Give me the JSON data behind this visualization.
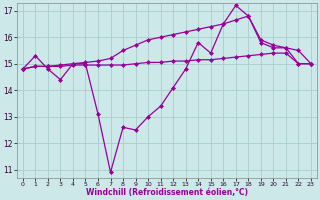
{
  "xlabel": "Windchill (Refroidissement éolien,°C)",
  "bg_color": "#cce8e8",
  "grid_color": "#aacccc",
  "line_color": "#990099",
  "xlim": [
    -0.5,
    23.5
  ],
  "ylim": [
    10.7,
    17.3
  ],
  "yticks": [
    11,
    12,
    13,
    14,
    15,
    16,
    17
  ],
  "xticks": [
    0,
    1,
    2,
    3,
    4,
    5,
    6,
    7,
    8,
    9,
    10,
    11,
    12,
    13,
    14,
    15,
    16,
    17,
    18,
    19,
    20,
    21,
    22,
    23
  ],
  "series": [
    [
      14.8,
      15.3,
      14.8,
      14.4,
      15.0,
      15.0,
      13.1,
      10.9,
      12.6,
      12.5,
      13.0,
      13.4,
      14.1,
      14.8,
      15.8,
      15.4,
      16.5,
      17.2,
      16.8,
      15.8,
      15.6,
      15.6,
      15.0,
      15.0
    ],
    [
      14.8,
      14.9,
      14.9,
      14.9,
      14.95,
      14.95,
      14.95,
      14.95,
      14.95,
      15.0,
      15.05,
      15.05,
      15.1,
      15.1,
      15.15,
      15.15,
      15.2,
      15.25,
      15.3,
      15.35,
      15.4,
      15.4,
      15.0,
      15.0
    ],
    [
      14.8,
      14.9,
      14.9,
      14.95,
      15.0,
      15.05,
      15.1,
      15.2,
      15.5,
      15.7,
      15.9,
      16.0,
      16.1,
      16.2,
      16.3,
      16.4,
      16.5,
      16.65,
      16.8,
      15.9,
      15.7,
      15.6,
      15.5,
      15.0
    ]
  ]
}
